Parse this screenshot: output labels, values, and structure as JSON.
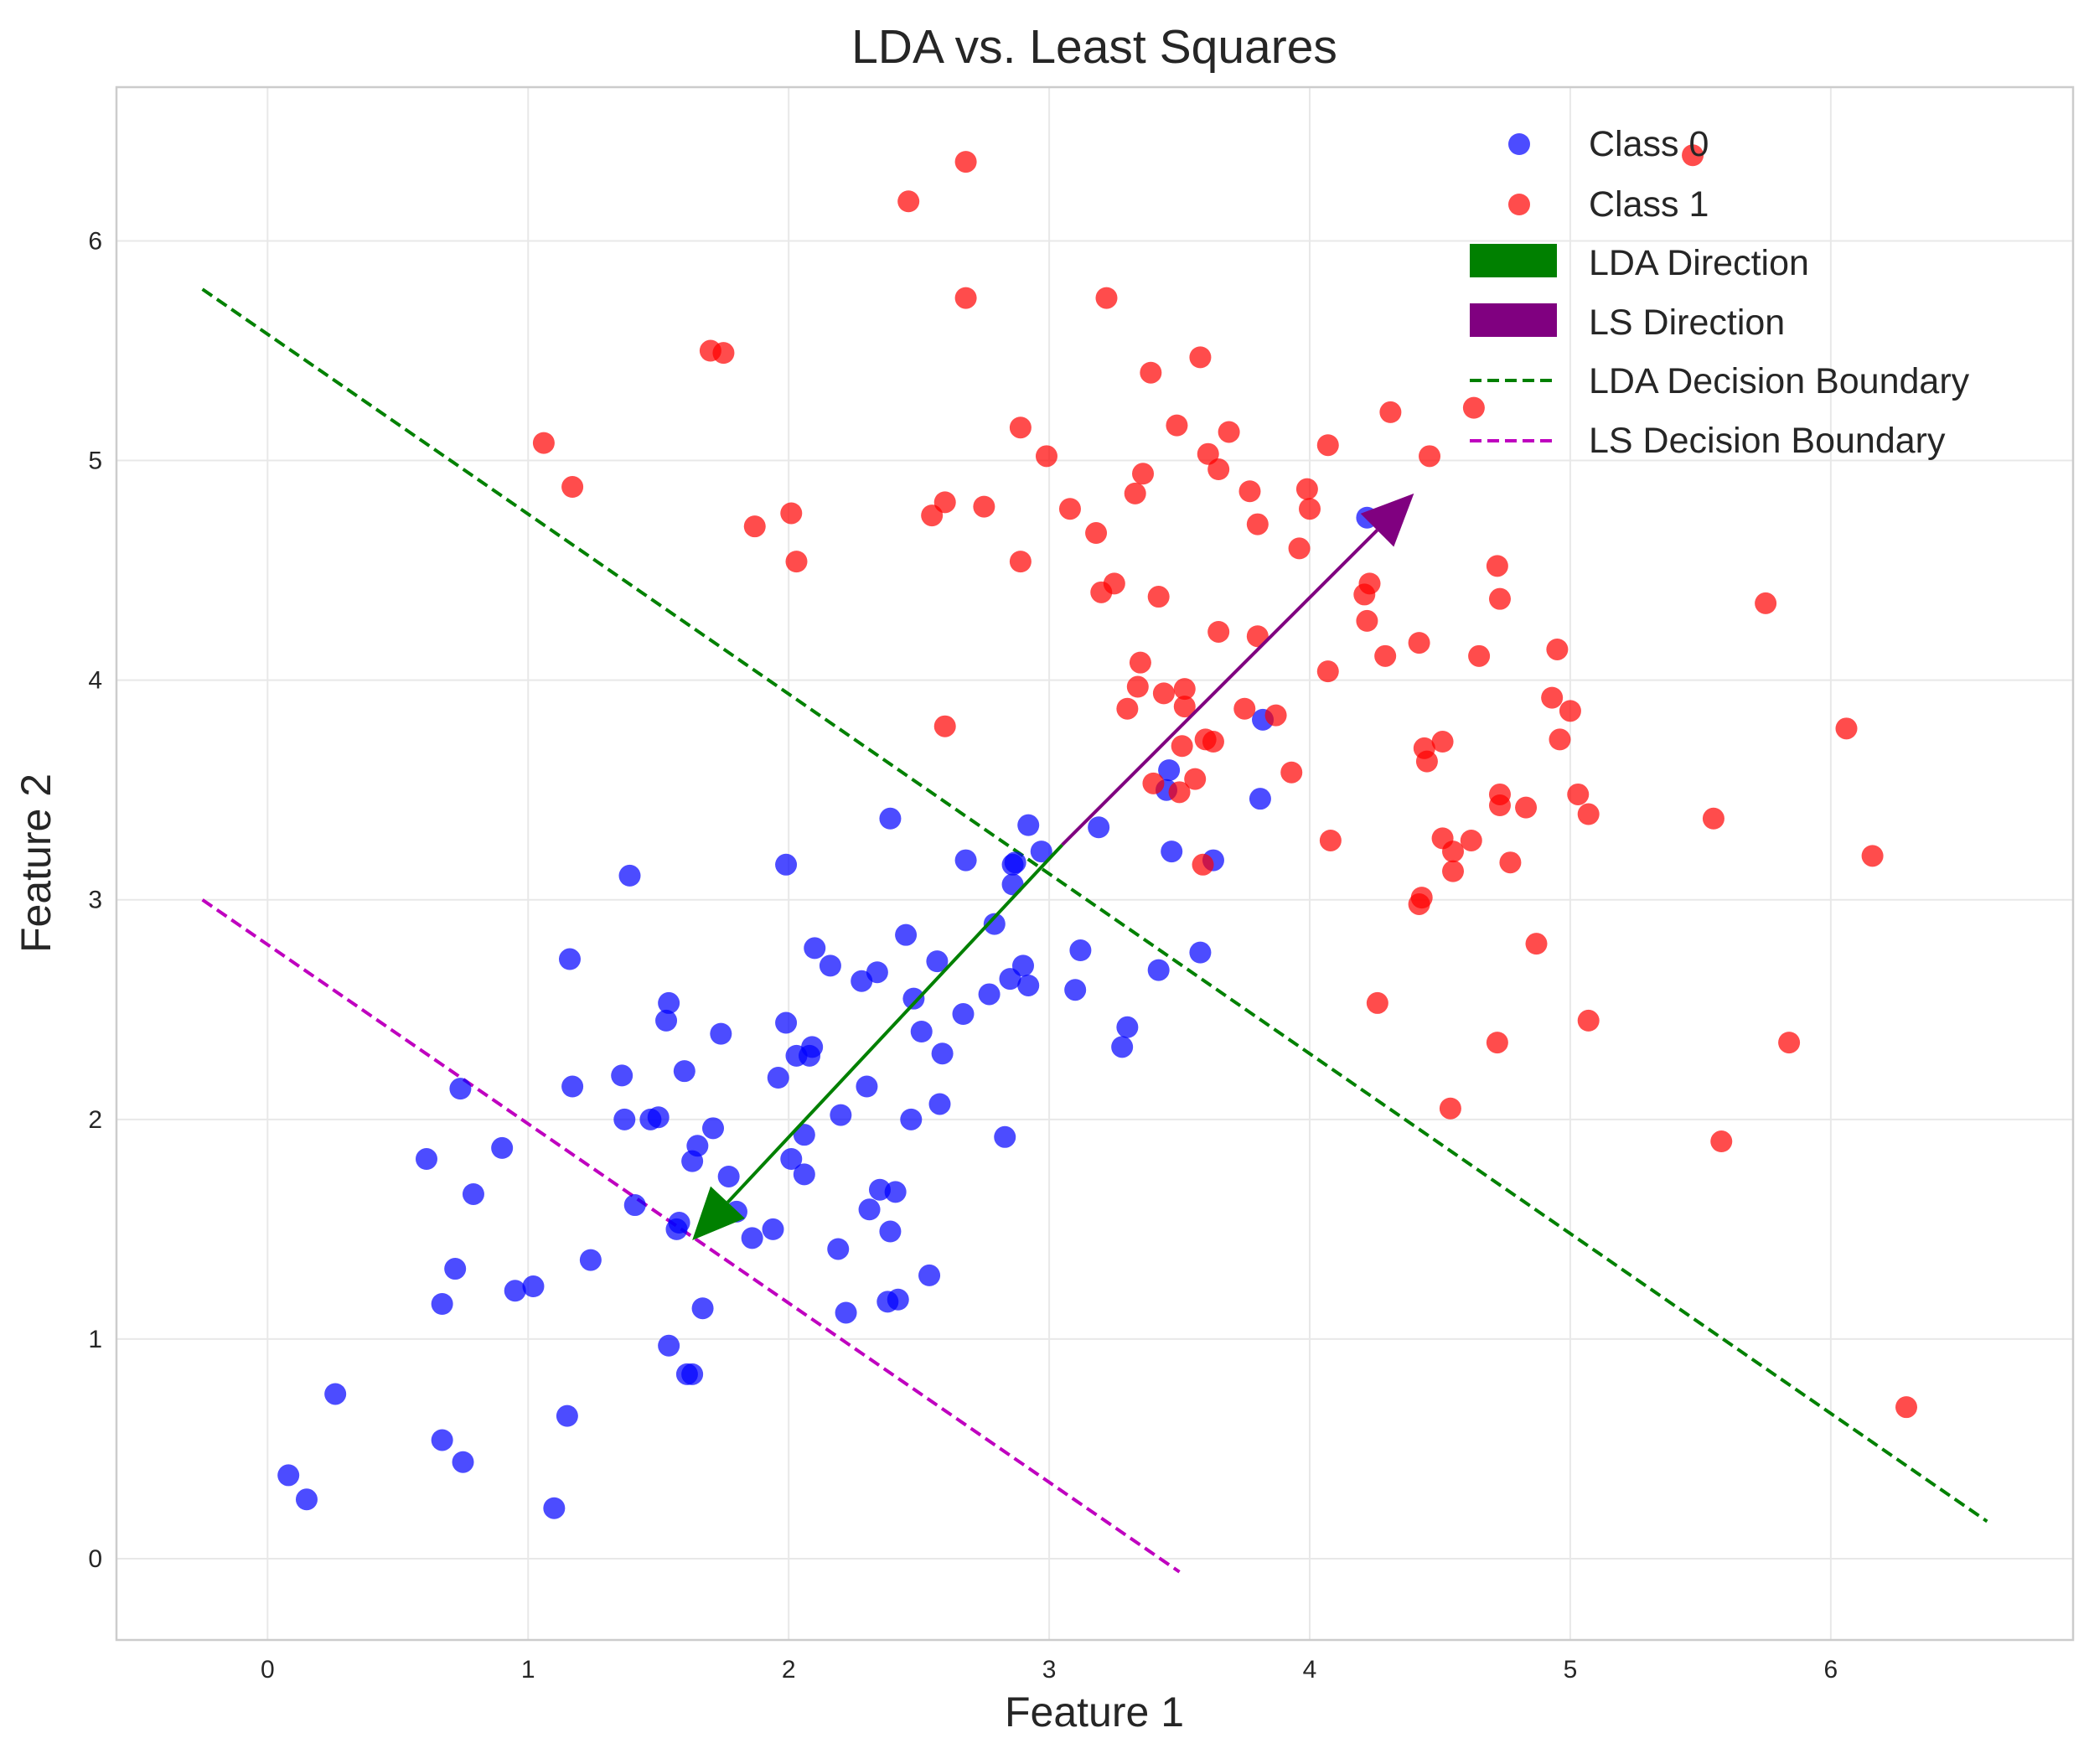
{
  "chart_data": {
    "type": "scatter",
    "title": "LDA vs. Least Squares",
    "xlabel": "Feature 1",
    "ylabel": "Feature 2",
    "xlim": [
      -0.58,
      6.93
    ],
    "ylim": [
      -0.37,
      6.7
    ],
    "x_ticks": [
      0,
      1,
      2,
      3,
      4,
      5,
      6
    ],
    "y_ticks": [
      0,
      1,
      2,
      3,
      4,
      5,
      6
    ],
    "grid": true,
    "legend_position": "upper right",
    "series": [
      {
        "name": "Class 0",
        "kind": "scatter",
        "color": "#0000ff",
        "points": [
          [
            0.08,
            0.38
          ],
          [
            0.15,
            0.27
          ],
          [
            0.26,
            0.75
          ],
          [
            0.61,
            1.82
          ],
          [
            0.67,
            1.16
          ],
          [
            0.67,
            0.54
          ],
          [
            0.72,
            1.32
          ],
          [
            0.74,
            2.14
          ],
          [
            0.75,
            0.44
          ],
          [
            0.79,
            1.66
          ],
          [
            0.9,
            1.87
          ],
          [
            0.95,
            1.22
          ],
          [
            1.02,
            1.24
          ],
          [
            1.1,
            0.23
          ],
          [
            1.15,
            0.65
          ],
          [
            1.16,
            2.73
          ],
          [
            1.17,
            2.15
          ],
          [
            1.24,
            1.36
          ],
          [
            1.36,
            2.2
          ],
          [
            1.37,
            2.0
          ],
          [
            1.39,
            3.11
          ],
          [
            1.41,
            1.61
          ],
          [
            1.47,
            2.0
          ],
          [
            1.5,
            2.01
          ],
          [
            1.53,
            2.45
          ],
          [
            1.54,
            2.53
          ],
          [
            1.54,
            0.97
          ],
          [
            1.57,
            1.5
          ],
          [
            1.58,
            1.53
          ],
          [
            1.6,
            2.22
          ],
          [
            1.61,
            0.84
          ],
          [
            1.63,
            0.84
          ],
          [
            1.63,
            1.81
          ],
          [
            1.65,
            1.88
          ],
          [
            1.67,
            1.14
          ],
          [
            1.71,
            1.96
          ],
          [
            1.74,
            2.39
          ],
          [
            1.77,
            1.74
          ],
          [
            1.8,
            1.58
          ],
          [
            1.86,
            1.46
          ],
          [
            1.94,
            1.5
          ],
          [
            1.96,
            2.19
          ],
          [
            1.99,
            2.44
          ],
          [
            1.99,
            3.16
          ],
          [
            2.01,
            1.82
          ],
          [
            2.03,
            2.29
          ],
          [
            2.06,
            1.93
          ],
          [
            2.06,
            1.75
          ],
          [
            2.08,
            2.29
          ],
          [
            2.09,
            2.33
          ],
          [
            2.1,
            2.78
          ],
          [
            2.16,
            2.7
          ],
          [
            2.19,
            1.41
          ],
          [
            2.2,
            2.02
          ],
          [
            2.22,
            1.12
          ],
          [
            2.28,
            2.63
          ],
          [
            2.3,
            2.15
          ],
          [
            2.31,
            1.59
          ],
          [
            2.34,
            2.67
          ],
          [
            2.35,
            1.68
          ],
          [
            2.38,
            1.17
          ],
          [
            2.39,
            1.49
          ],
          [
            2.39,
            3.37
          ],
          [
            2.41,
            1.67
          ],
          [
            2.42,
            1.18
          ],
          [
            2.45,
            2.84
          ],
          [
            2.47,
            2.0
          ],
          [
            2.48,
            2.55
          ],
          [
            2.51,
            2.4
          ],
          [
            2.54,
            1.29
          ],
          [
            2.57,
            2.72
          ],
          [
            2.58,
            2.07
          ],
          [
            2.59,
            2.3
          ],
          [
            2.67,
            2.48
          ],
          [
            2.68,
            3.18
          ],
          [
            2.77,
            2.57
          ],
          [
            2.79,
            2.89
          ],
          [
            2.83,
            1.92
          ],
          [
            2.85,
            2.64
          ],
          [
            2.86,
            3.16
          ],
          [
            2.86,
            3.07
          ],
          [
            2.87,
            3.17
          ],
          [
            2.9,
            2.7
          ],
          [
            2.92,
            2.61
          ],
          [
            2.92,
            3.34
          ],
          [
            2.97,
            3.22
          ],
          [
            3.1,
            2.59
          ],
          [
            3.12,
            2.77
          ],
          [
            3.19,
            3.33
          ],
          [
            3.28,
            2.33
          ],
          [
            3.3,
            2.42
          ],
          [
            3.42,
            2.68
          ],
          [
            3.45,
            3.5
          ],
          [
            3.46,
            3.59
          ],
          [
            3.47,
            3.22
          ],
          [
            3.58,
            2.76
          ],
          [
            3.63,
            3.18
          ],
          [
            3.81,
            3.46
          ],
          [
            3.82,
            3.82
          ],
          [
            4.22,
            4.74
          ]
        ]
      },
      {
        "name": "Class 1",
        "kind": "scatter",
        "color": "#ff0000",
        "points": [
          [
            1.06,
            5.08
          ],
          [
            1.17,
            4.88
          ],
          [
            1.7,
            5.5
          ],
          [
            1.75,
            5.49
          ],
          [
            1.87,
            4.7
          ],
          [
            2.01,
            4.76
          ],
          [
            2.03,
            4.54
          ],
          [
            2.46,
            6.18
          ],
          [
            2.55,
            4.75
          ],
          [
            2.6,
            4.81
          ],
          [
            2.6,
            3.79
          ],
          [
            2.68,
            6.36
          ],
          [
            2.68,
            5.74
          ],
          [
            2.75,
            4.79
          ],
          [
            2.89,
            5.15
          ],
          [
            2.89,
            4.54
          ],
          [
            2.99,
            5.02
          ],
          [
            3.08,
            4.78
          ],
          [
            3.18,
            4.67
          ],
          [
            3.2,
            4.4
          ],
          [
            3.22,
            5.74
          ],
          [
            3.25,
            4.44
          ],
          [
            3.3,
            3.87
          ],
          [
            3.33,
            4.85
          ],
          [
            3.34,
            3.97
          ],
          [
            3.35,
            4.08
          ],
          [
            3.36,
            4.94
          ],
          [
            3.39,
            5.4
          ],
          [
            3.4,
            3.53
          ],
          [
            3.42,
            4.38
          ],
          [
            3.44,
            3.94
          ],
          [
            3.49,
            5.16
          ],
          [
            3.5,
            3.49
          ],
          [
            3.51,
            3.7
          ],
          [
            3.52,
            3.96
          ],
          [
            3.52,
            3.88
          ],
          [
            3.56,
            3.55
          ],
          [
            3.58,
            5.47
          ],
          [
            3.59,
            3.16
          ],
          [
            3.6,
            3.73
          ],
          [
            3.61,
            5.03
          ],
          [
            3.63,
            3.72
          ],
          [
            3.65,
            4.96
          ],
          [
            3.65,
            4.22
          ],
          [
            3.69,
            5.13
          ],
          [
            3.75,
            3.87
          ],
          [
            3.77,
            4.86
          ],
          [
            3.8,
            4.71
          ],
          [
            3.8,
            4.2
          ],
          [
            3.87,
            3.84
          ],
          [
            3.93,
            3.58
          ],
          [
            3.96,
            4.6
          ],
          [
            3.99,
            4.87
          ],
          [
            4.0,
            4.78
          ],
          [
            4.07,
            5.07
          ],
          [
            4.07,
            4.04
          ],
          [
            4.08,
            3.27
          ],
          [
            4.21,
            4.39
          ],
          [
            4.22,
            4.27
          ],
          [
            4.23,
            4.44
          ],
          [
            4.26,
            2.53
          ],
          [
            4.29,
            4.11
          ],
          [
            4.31,
            5.22
          ],
          [
            4.42,
            4.17
          ],
          [
            4.42,
            2.98
          ],
          [
            4.43,
            3.01
          ],
          [
            4.44,
            3.69
          ],
          [
            4.45,
            3.63
          ],
          [
            4.46,
            5.02
          ],
          [
            4.51,
            3.28
          ],
          [
            4.51,
            3.72
          ],
          [
            4.54,
            2.05
          ],
          [
            4.55,
            3.22
          ],
          [
            4.55,
            3.13
          ],
          [
            4.62,
            3.27
          ],
          [
            4.63,
            5.24
          ],
          [
            4.65,
            4.11
          ],
          [
            4.72,
            4.52
          ],
          [
            4.72,
            2.35
          ],
          [
            4.73,
            4.37
          ],
          [
            4.73,
            3.48
          ],
          [
            4.73,
            3.43
          ],
          [
            4.77,
            3.17
          ],
          [
            4.83,
            3.42
          ],
          [
            4.87,
            2.8
          ],
          [
            4.93,
            3.92
          ],
          [
            4.95,
            4.14
          ],
          [
            4.96,
            3.73
          ],
          [
            5.0,
            3.86
          ],
          [
            5.03,
            3.48
          ],
          [
            5.07,
            3.39
          ],
          [
            5.07,
            2.45
          ],
          [
            5.47,
            6.39
          ],
          [
            5.55,
            3.37
          ],
          [
            5.58,
            1.9
          ],
          [
            5.75,
            4.35
          ],
          [
            5.84,
            2.35
          ],
          [
            6.06,
            3.78
          ],
          [
            6.16,
            3.2
          ],
          [
            6.29,
            0.69
          ]
        ]
      },
      {
        "name": "LDA Direction",
        "kind": "arrow",
        "color": "#008000",
        "from": [
          3.05,
          3.25
        ],
        "to": [
          1.63,
          1.45
        ]
      },
      {
        "name": "LS Direction",
        "kind": "arrow",
        "color": "#800080",
        "from": [
          3.05,
          3.25
        ],
        "to": [
          4.4,
          4.85
        ]
      },
      {
        "name": "LDA Decision Boundary",
        "kind": "dashed-line",
        "color": "#008000",
        "x": [
          -0.25,
          6.6
        ],
        "y": [
          5.78,
          0.17
        ]
      },
      {
        "name": "LS Decision Boundary",
        "kind": "dashed-line",
        "color": "#bf00bf",
        "x": [
          -0.25,
          3.5
        ],
        "y": [
          3.0,
          -0.06
        ]
      }
    ]
  }
}
